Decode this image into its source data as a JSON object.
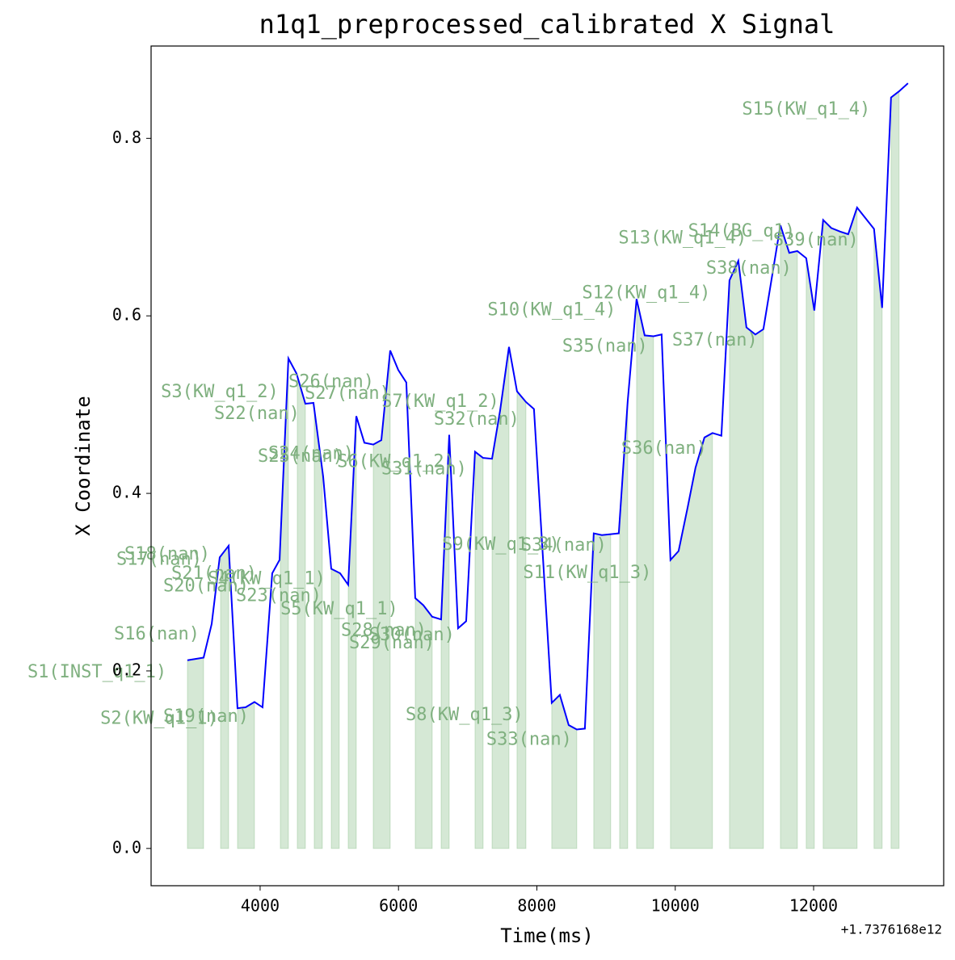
{
  "chart_data": {
    "type": "line",
    "title": "n1q1_preprocessed_calibrated X Signal",
    "x_label": "Time(ms)",
    "y_label": "X Coordinate",
    "x_offset_label": "+1.7376168e12",
    "xlim": [
      2424,
      13880
    ],
    "ylim": [
      -0.042,
      0.904
    ],
    "xticks": [
      4000,
      6000,
      8000,
      10000,
      12000
    ],
    "yticks": [
      {
        "value": 0,
        "label": "0.0"
      },
      {
        "value": 0.2,
        "label": "0.2"
      },
      {
        "value": 0.4,
        "label": "0.4"
      },
      {
        "value": 0.6,
        "label": "0.6"
      },
      {
        "value": 0.8,
        "label": "0.8"
      }
    ],
    "x": [
      2949,
      3183,
      3300,
      3416,
      3545,
      3673,
      3790,
      3918,
      4035,
      4175,
      4281,
      4409,
      4526,
      4654,
      4771,
      4911,
      5028,
      5156,
      5273,
      5390,
      5507,
      5635,
      5752,
      5880,
      5997,
      6113,
      6242,
      6359,
      6487,
      6616,
      6733,
      6861,
      6978,
      7106,
      7223,
      7352,
      7468,
      7597,
      7713,
      7842,
      7958,
      8215,
      8332,
      8460,
      8577,
      8694,
      8822,
      8939,
      9067,
      9184,
      9313,
      9441,
      9558,
      9686,
      9803,
      9931,
      10048,
      10176,
      10293,
      10422,
      10538,
      10667,
      10784,
      10912,
      11029,
      11158,
      11274,
      11520,
      11648,
      11765,
      11893,
      12010,
      12138,
      12255,
      12383,
      12500,
      12628,
      12873,
      12990,
      13119,
      13235,
      13364
    ],
    "series": [
      {
        "color": "#0000ff",
        "values": [
          0.212,
          0.215,
          0.253,
          0.328,
          0.341,
          0.158,
          0.159,
          0.165,
          0.159,
          0.31,
          0.325,
          0.552,
          0.535,
          0.501,
          0.502,
          0.419,
          0.315,
          0.31,
          0.297,
          0.487,
          0.457,
          0.455,
          0.46,
          0.561,
          0.539,
          0.525,
          0.282,
          0.274,
          0.261,
          0.258,
          0.466,
          0.248,
          0.256,
          0.447,
          0.44,
          0.439,
          0.493,
          0.565,
          0.515,
          0.503,
          0.495,
          0.164,
          0.173,
          0.139,
          0.134,
          0.135,
          0.355,
          0.353,
          0.354,
          0.355,
          0.504,
          0.619,
          0.578,
          0.577,
          0.579,
          0.325,
          0.335,
          0.383,
          0.429,
          0.463,
          0.468,
          0.465,
          0.64,
          0.662,
          0.587,
          0.579,
          0.585,
          0.702,
          0.671,
          0.673,
          0.665,
          0.606,
          0.708,
          0.699,
          0.695,
          0.692,
          0.722,
          0.698,
          0.609,
          0.846,
          0.853,
          0.862
        ]
      }
    ],
    "fill_color": "#2e8b2e",
    "spans": [
      [
        2949,
        3183
      ],
      [
        3428,
        3545
      ],
      [
        3673,
        3918
      ],
      [
        4292,
        4409
      ],
      [
        4537,
        4654
      ],
      [
        4782,
        4899
      ],
      [
        5028,
        5144
      ],
      [
        5273,
        5390
      ],
      [
        5635,
        5880
      ],
      [
        6242,
        6487
      ],
      [
        6616,
        6733
      ],
      [
        7106,
        7223
      ],
      [
        7352,
        7597
      ],
      [
        7713,
        7842
      ],
      [
        8215,
        8577
      ],
      [
        8822,
        9067
      ],
      [
        9196,
        9313
      ],
      [
        9441,
        9686
      ],
      [
        9931,
        10538
      ],
      [
        10784,
        11274
      ],
      [
        11520,
        11765
      ],
      [
        11893,
        12010
      ],
      [
        12138,
        12628
      ],
      [
        12873,
        12990
      ],
      [
        13119,
        13235
      ]
    ],
    "annotation_color": "#7fb07f",
    "annotations": [
      {
        "text": "S1(INST_q1_1)",
        "x": 1642,
        "y": 0.198
      },
      {
        "text": "S2(KW_q1_1)",
        "x": 2541,
        "y": 0.146
      },
      {
        "text": "S19(nan)",
        "x": 3218,
        "y": 0.148
      },
      {
        "text": "S16(nan)",
        "x": 2506,
        "y": 0.241
      },
      {
        "text": "S18(nan)",
        "x": 2658,
        "y": 0.331
      },
      {
        "text": "S17(nan)",
        "x": 2541,
        "y": 0.325
      },
      {
        "text": "S21(nan)",
        "x": 3335,
        "y": 0.309
      },
      {
        "text": "S4(KW_q1_1)",
        "x": 4094,
        "y": 0.303
      },
      {
        "text": "S20(nan)",
        "x": 3218,
        "y": 0.295
      },
      {
        "text": "S23(nan)",
        "x": 4269,
        "y": 0.284
      },
      {
        "text": "S5(KW_q1_1)",
        "x": 5144,
        "y": 0.269
      },
      {
        "text": "S3(KW_q1_2)",
        "x": 3416,
        "y": 0.514
      },
      {
        "text": "S22(nan)",
        "x": 3953,
        "y": 0.489
      },
      {
        "text": "S26(nan)",
        "x": 5028,
        "y": 0.525
      },
      {
        "text": "S27(nan)",
        "x": 5261,
        "y": 0.512
      },
      {
        "text": "S7(KW_q1_2)",
        "x": 6604,
        "y": 0.503
      },
      {
        "text": "S32(nan)",
        "x": 7129,
        "y": 0.483
      },
      {
        "text": "S24(nan)",
        "x": 4736,
        "y": 0.444
      },
      {
        "text": "S25(nan)",
        "x": 4584,
        "y": 0.441
      },
      {
        "text": "S6(KW_q1_2)",
        "x": 5962,
        "y": 0.435
      },
      {
        "text": "S31(nan)",
        "x": 6370,
        "y": 0.427
      },
      {
        "text": "S28(nan)",
        "x": 5787,
        "y": 0.245
      },
      {
        "text": "S30(nan)",
        "x": 6195,
        "y": 0.24
      },
      {
        "text": "S29(nan)",
        "x": 5904,
        "y": 0.231
      },
      {
        "text": "S9(KW_q1_3)",
        "x": 7480,
        "y": 0.342
      },
      {
        "text": "S34(nan)",
        "x": 8390,
        "y": 0.341
      },
      {
        "text": "S11(KW_q1_3)",
        "x": 8729,
        "y": 0.31
      },
      {
        "text": "S8(KW_q1_3)",
        "x": 6954,
        "y": 0.15
      },
      {
        "text": "S33(nan)",
        "x": 7888,
        "y": 0.122
      },
      {
        "text": "S10(KW_q1_4)",
        "x": 8215,
        "y": 0.606
      },
      {
        "text": "S35(nan)",
        "x": 8985,
        "y": 0.565
      },
      {
        "text": "S12(KW_q1_4)",
        "x": 9581,
        "y": 0.625
      },
      {
        "text": "S36(nan)",
        "x": 9838,
        "y": 0.45
      },
      {
        "text": "S37(nan)",
        "x": 10573,
        "y": 0.572
      },
      {
        "text": "S13(KW_q1_4)",
        "x": 10106,
        "y": 0.687
      },
      {
        "text": "S14(BG_q1)",
        "x": 10959,
        "y": 0.695
      },
      {
        "text": "S39(nan)",
        "x": 12033,
        "y": 0.685
      },
      {
        "text": "S38(nan)",
        "x": 11064,
        "y": 0.653
      },
      {
        "text": "S15(KW_q1_4)",
        "x": 11893,
        "y": 0.832
      }
    ]
  }
}
